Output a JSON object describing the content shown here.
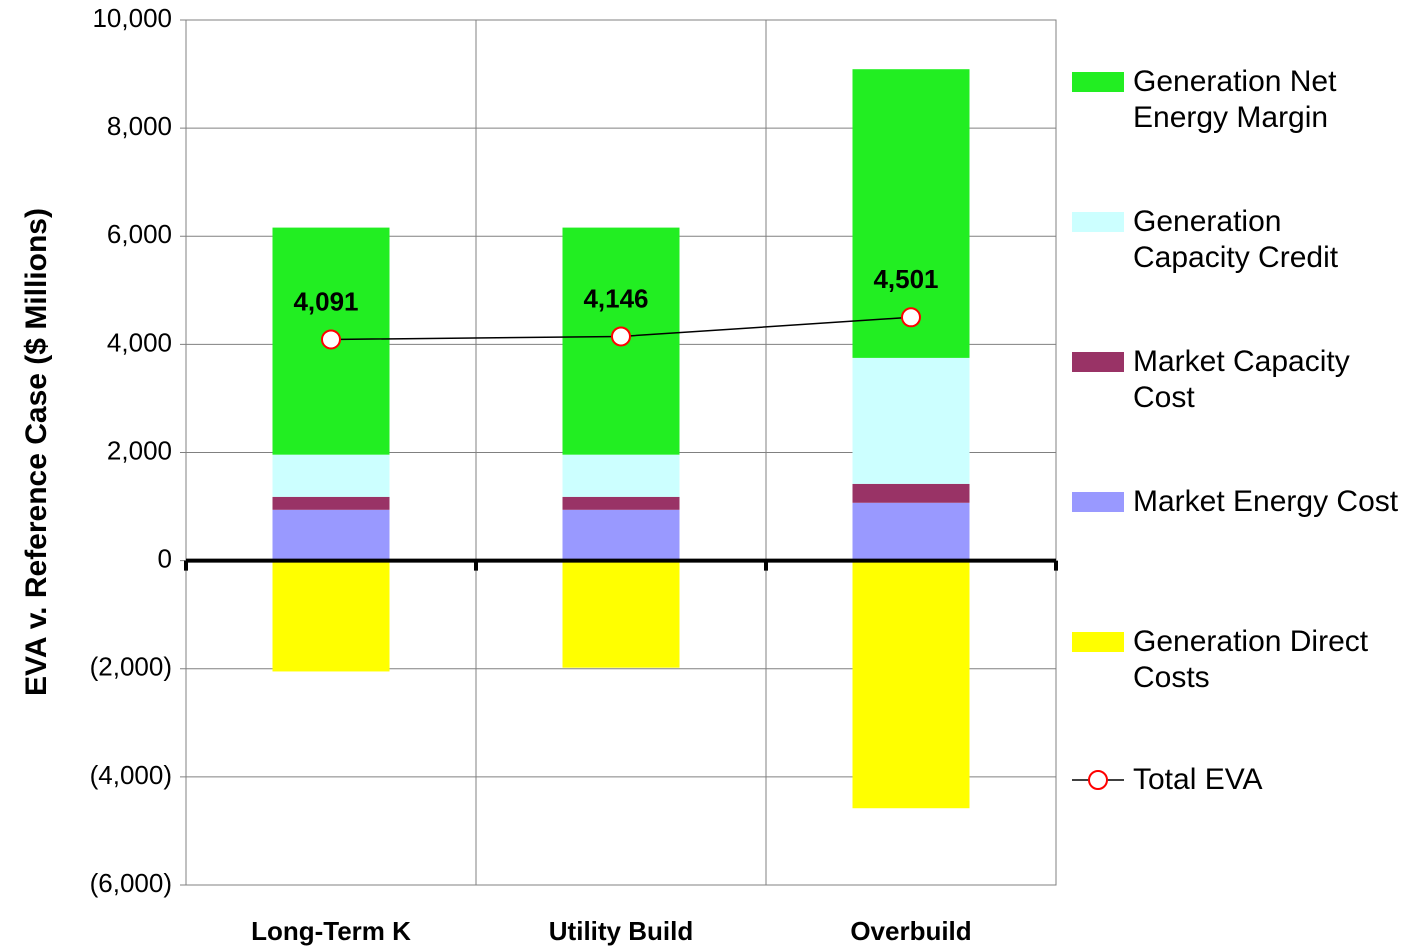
{
  "chart_data": {
    "type": "bar",
    "stacked": true,
    "y_label": "EVA v. Reference Case ($ Millions)",
    "categories": [
      "Long-Term K",
      "Utility Build",
      "Overbuild"
    ],
    "ylim": [
      -6000,
      10000
    ],
    "yticks": [
      {
        "value": -6000,
        "label": "(6,000)"
      },
      {
        "value": -4000,
        "label": "(4,000)"
      },
      {
        "value": -2000,
        "label": "(2,000)"
      },
      0,
      {
        "value": 2000,
        "label": "2,000"
      },
      {
        "value": 4000,
        "label": "4,000"
      },
      {
        "value": 6000,
        "label": "6,000"
      },
      {
        "value": 8000,
        "label": "8,000"
      },
      {
        "value": 10000,
        "label": "10,000"
      }
    ],
    "grid": true,
    "legend": "right",
    "series": [
      {
        "name": "Generation Net Energy Margin",
        "color": "#22ee22",
        "values": [
          4200,
          4200,
          5340
        ]
      },
      {
        "name": "Generation Capacity Credit",
        "color": "#ccffff",
        "values": [
          780,
          780,
          2330
        ]
      },
      {
        "name": "Market Capacity Cost",
        "color": "#993366",
        "values": [
          240,
          240,
          350
        ]
      },
      {
        "name": "Market Energy Cost",
        "color": "#9999ff",
        "values": [
          940,
          940,
          1070
        ]
      },
      {
        "name": "Generation Direct Costs",
        "color": "#ffff00",
        "values": [
          -2050,
          -1980,
          -4580
        ]
      },
      {
        "name": "Total EVA",
        "type": "line",
        "color": "#000000",
        "marker_color": "#ff0000",
        "values": [
          4091,
          4146,
          4501
        ],
        "value_labels": [
          "4,091",
          "4,146",
          "4,501"
        ]
      }
    ]
  }
}
